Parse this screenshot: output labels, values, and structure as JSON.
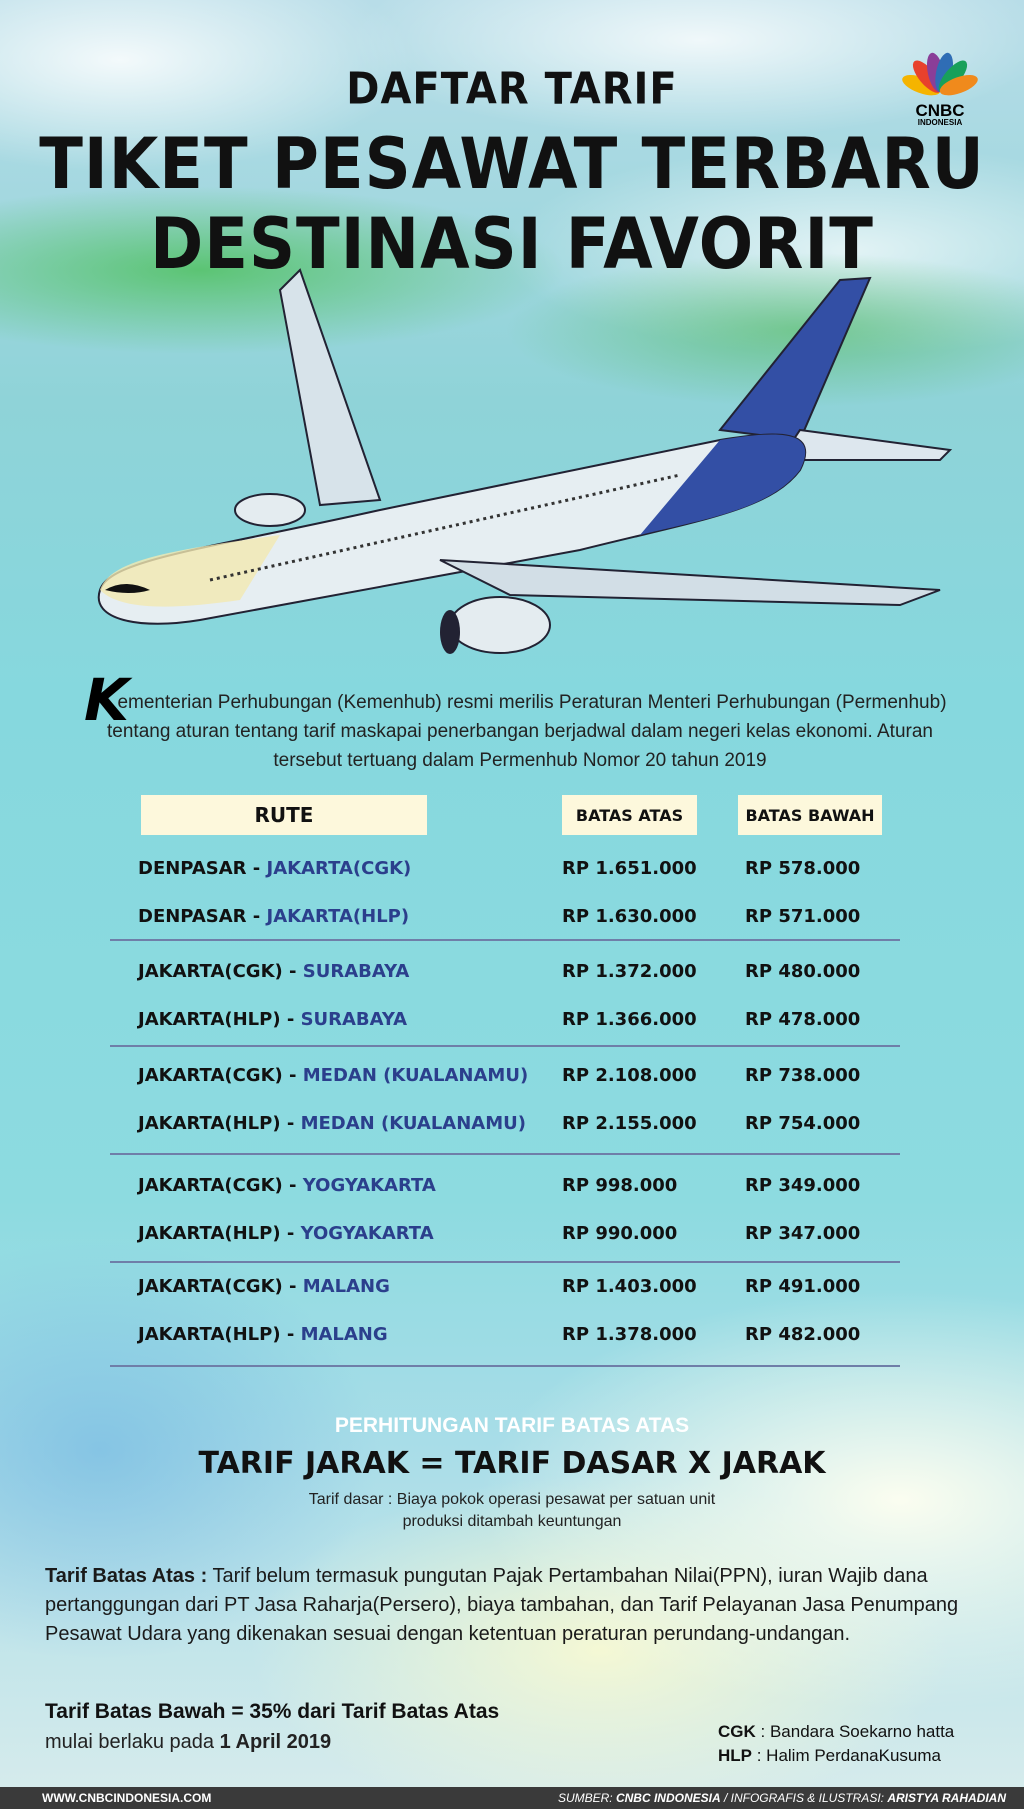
{
  "header": {
    "line1": "DAFTAR TARIF",
    "line2": "TIKET PESAWAT TERBARU",
    "line3": "DESTINASI FAVORIT",
    "logo_text": "CNBC",
    "logo_sub": "INDONESIA"
  },
  "intro": {
    "drop_cap": "K",
    "text": "ementerian Perhubungan (Kemenhub) resmi merilis Peraturan Menteri Perhubungan (Permenhub) tentang aturan tentang tarif maskapai penerbangan berjadwal dalam negeri kelas ekonomi. Aturan tersebut tertuang dalam Permenhub Nomor 20 tahun 2019"
  },
  "table": {
    "headers": {
      "route": "RUTE",
      "upper": "BATAS ATAS",
      "lower": "BATAS BAWAH"
    },
    "rows": [
      {
        "origin": "DENPASAR - ",
        "dest": "JAKARTA(CGK)",
        "upper": "RP 1.651.000",
        "lower": "RP 578.000"
      },
      {
        "origin": "DENPASAR - ",
        "dest": "JAKARTA(HLP)",
        "upper": "RP 1.630.000",
        "lower": "RP 571.000"
      },
      {
        "origin": "JAKARTA(CGK) - ",
        "dest": "SURABAYA",
        "upper": "RP 1.372.000",
        "lower": "RP 480.000"
      },
      {
        "origin": "JAKARTA(HLP) - ",
        "dest": "SURABAYA",
        "upper": "RP 1.366.000",
        "lower": "RP 478.000"
      },
      {
        "origin": "JAKARTA(CGK) - ",
        "dest": "MEDAN (KUALANAMU)",
        "upper": "RP 2.108.000",
        "lower": "RP 738.000"
      },
      {
        "origin": "JAKARTA(HLP) - ",
        "dest": "MEDAN (KUALANAMU)",
        "upper": "RP 2.155.000",
        "lower": "RP 754.000"
      },
      {
        "origin": "JAKARTA(CGK) - ",
        "dest": "YOGYAKARTA",
        "upper": "RP 998.000",
        "lower": "RP 349.000"
      },
      {
        "origin": "JAKARTA(HLP) - ",
        "dest": "YOGYAKARTA",
        "upper": "RP 990.000",
        "lower": "RP 347.000"
      },
      {
        "origin": "JAKARTA(CGK) - ",
        "dest": "MALANG",
        "upper": "RP 1.403.000",
        "lower": "RP 491.000"
      },
      {
        "origin": "JAKARTA(HLP) - ",
        "dest": "MALANG",
        "upper": "RP 1.378.000",
        "lower": "RP 482.000"
      }
    ]
  },
  "calc": {
    "heading": "PERHITUNGAN TARIF BATAS ATAS",
    "formula": "TARIF JARAK = TARIF DASAR X JARAK",
    "note_line1": "Tarif dasar : Biaya pokok operasi pesawat per satuan unit",
    "note_line2": "produksi ditambah keuntungan"
  },
  "upper_def": {
    "label": "Tarif Batas Atas :",
    "text": " Tarif belum termasuk pungutan Pajak Pertambahan Nilai(PPN), iuran Wajib dana pertanggungan dari PT Jasa Raharja(Persero), biaya tambahan, dan Tarif Pelayanan Jasa Penumpang Pesawat Udara yang dikenakan sesuai dengan ketentuan peraturan perundang-undangan."
  },
  "lower_def": {
    "text": "Tarif Batas Bawah = 35% dari Tarif Batas Atas",
    "effective_prefix": "mulai berlaku pada ",
    "effective_date": "1 April 2019"
  },
  "legend": {
    "cgk_label": "CGK",
    "cgk_text": " : Bandara Soekarno hatta",
    "hlp_label": "HLP",
    "hlp_text": " : Halim PerdanaKusuma"
  },
  "footer": {
    "website": "WWW.CNBCINDONESIA.COM",
    "source_prefix": "SUMBER: ",
    "source": "CNBC INDONESIA",
    "credit_prefix": " / INFOGRAFIS & ILUSTRASI: ",
    "credit": "ARISTYA RAHADIAN"
  },
  "colors": {
    "accent_blue": "#2b3f8c",
    "header_bg": "#fdf8dc",
    "footer_bg": "#3a3a3a"
  }
}
